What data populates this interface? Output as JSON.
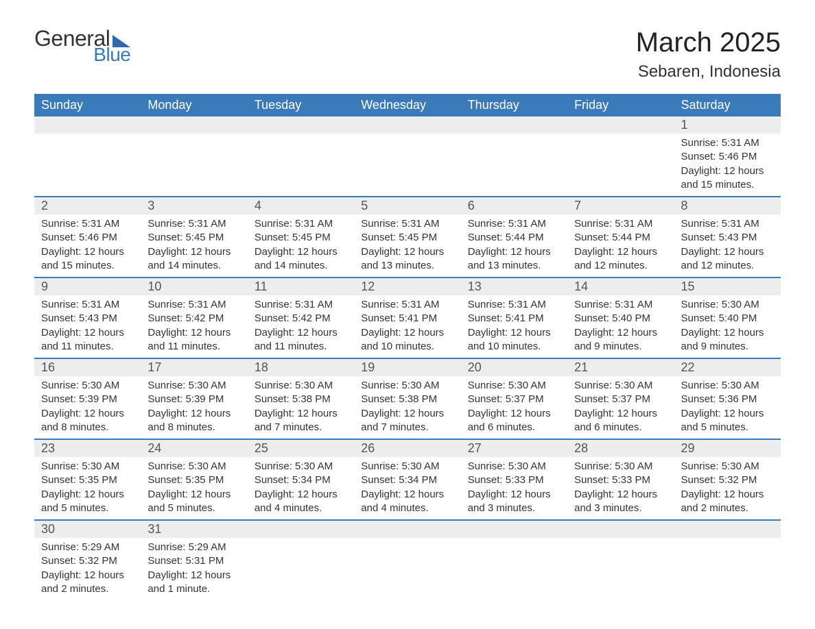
{
  "logo": {
    "text_general": "General",
    "text_blue": "Blue",
    "brand_color": "#3a7ab8"
  },
  "header": {
    "month_title": "March 2025",
    "location": "Sebaren, Indonesia"
  },
  "styling": {
    "header_bg": "#3a7ab8",
    "header_text": "#ffffff",
    "daynum_bg": "#ededed",
    "row_divider": "#3a7ab8",
    "body_bg": "#ffffff",
    "text_color": "#333333",
    "title_fontsize": 40,
    "location_fontsize": 24,
    "weekday_fontsize": 18,
    "daynum_fontsize": 18,
    "detail_fontsize": 15
  },
  "calendar": {
    "weekdays": [
      "Sunday",
      "Monday",
      "Tuesday",
      "Wednesday",
      "Thursday",
      "Friday",
      "Saturday"
    ],
    "weeks": [
      [
        null,
        null,
        null,
        null,
        null,
        null,
        {
          "n": "1",
          "sr": "Sunrise: 5:31 AM",
          "ss": "Sunset: 5:46 PM",
          "dl1": "Daylight: 12 hours",
          "dl2": "and 15 minutes."
        }
      ],
      [
        {
          "n": "2",
          "sr": "Sunrise: 5:31 AM",
          "ss": "Sunset: 5:46 PM",
          "dl1": "Daylight: 12 hours",
          "dl2": "and 15 minutes."
        },
        {
          "n": "3",
          "sr": "Sunrise: 5:31 AM",
          "ss": "Sunset: 5:45 PM",
          "dl1": "Daylight: 12 hours",
          "dl2": "and 14 minutes."
        },
        {
          "n": "4",
          "sr": "Sunrise: 5:31 AM",
          "ss": "Sunset: 5:45 PM",
          "dl1": "Daylight: 12 hours",
          "dl2": "and 14 minutes."
        },
        {
          "n": "5",
          "sr": "Sunrise: 5:31 AM",
          "ss": "Sunset: 5:45 PM",
          "dl1": "Daylight: 12 hours",
          "dl2": "and 13 minutes."
        },
        {
          "n": "6",
          "sr": "Sunrise: 5:31 AM",
          "ss": "Sunset: 5:44 PM",
          "dl1": "Daylight: 12 hours",
          "dl2": "and 13 minutes."
        },
        {
          "n": "7",
          "sr": "Sunrise: 5:31 AM",
          "ss": "Sunset: 5:44 PM",
          "dl1": "Daylight: 12 hours",
          "dl2": "and 12 minutes."
        },
        {
          "n": "8",
          "sr": "Sunrise: 5:31 AM",
          "ss": "Sunset: 5:43 PM",
          "dl1": "Daylight: 12 hours",
          "dl2": "and 12 minutes."
        }
      ],
      [
        {
          "n": "9",
          "sr": "Sunrise: 5:31 AM",
          "ss": "Sunset: 5:43 PM",
          "dl1": "Daylight: 12 hours",
          "dl2": "and 11 minutes."
        },
        {
          "n": "10",
          "sr": "Sunrise: 5:31 AM",
          "ss": "Sunset: 5:42 PM",
          "dl1": "Daylight: 12 hours",
          "dl2": "and 11 minutes."
        },
        {
          "n": "11",
          "sr": "Sunrise: 5:31 AM",
          "ss": "Sunset: 5:42 PM",
          "dl1": "Daylight: 12 hours",
          "dl2": "and 11 minutes."
        },
        {
          "n": "12",
          "sr": "Sunrise: 5:31 AM",
          "ss": "Sunset: 5:41 PM",
          "dl1": "Daylight: 12 hours",
          "dl2": "and 10 minutes."
        },
        {
          "n": "13",
          "sr": "Sunrise: 5:31 AM",
          "ss": "Sunset: 5:41 PM",
          "dl1": "Daylight: 12 hours",
          "dl2": "and 10 minutes."
        },
        {
          "n": "14",
          "sr": "Sunrise: 5:31 AM",
          "ss": "Sunset: 5:40 PM",
          "dl1": "Daylight: 12 hours",
          "dl2": "and 9 minutes."
        },
        {
          "n": "15",
          "sr": "Sunrise: 5:30 AM",
          "ss": "Sunset: 5:40 PM",
          "dl1": "Daylight: 12 hours",
          "dl2": "and 9 minutes."
        }
      ],
      [
        {
          "n": "16",
          "sr": "Sunrise: 5:30 AM",
          "ss": "Sunset: 5:39 PM",
          "dl1": "Daylight: 12 hours",
          "dl2": "and 8 minutes."
        },
        {
          "n": "17",
          "sr": "Sunrise: 5:30 AM",
          "ss": "Sunset: 5:39 PM",
          "dl1": "Daylight: 12 hours",
          "dl2": "and 8 minutes."
        },
        {
          "n": "18",
          "sr": "Sunrise: 5:30 AM",
          "ss": "Sunset: 5:38 PM",
          "dl1": "Daylight: 12 hours",
          "dl2": "and 7 minutes."
        },
        {
          "n": "19",
          "sr": "Sunrise: 5:30 AM",
          "ss": "Sunset: 5:38 PM",
          "dl1": "Daylight: 12 hours",
          "dl2": "and 7 minutes."
        },
        {
          "n": "20",
          "sr": "Sunrise: 5:30 AM",
          "ss": "Sunset: 5:37 PM",
          "dl1": "Daylight: 12 hours",
          "dl2": "and 6 minutes."
        },
        {
          "n": "21",
          "sr": "Sunrise: 5:30 AM",
          "ss": "Sunset: 5:37 PM",
          "dl1": "Daylight: 12 hours",
          "dl2": "and 6 minutes."
        },
        {
          "n": "22",
          "sr": "Sunrise: 5:30 AM",
          "ss": "Sunset: 5:36 PM",
          "dl1": "Daylight: 12 hours",
          "dl2": "and 5 minutes."
        }
      ],
      [
        {
          "n": "23",
          "sr": "Sunrise: 5:30 AM",
          "ss": "Sunset: 5:35 PM",
          "dl1": "Daylight: 12 hours",
          "dl2": "and 5 minutes."
        },
        {
          "n": "24",
          "sr": "Sunrise: 5:30 AM",
          "ss": "Sunset: 5:35 PM",
          "dl1": "Daylight: 12 hours",
          "dl2": "and 5 minutes."
        },
        {
          "n": "25",
          "sr": "Sunrise: 5:30 AM",
          "ss": "Sunset: 5:34 PM",
          "dl1": "Daylight: 12 hours",
          "dl2": "and 4 minutes."
        },
        {
          "n": "26",
          "sr": "Sunrise: 5:30 AM",
          "ss": "Sunset: 5:34 PM",
          "dl1": "Daylight: 12 hours",
          "dl2": "and 4 minutes."
        },
        {
          "n": "27",
          "sr": "Sunrise: 5:30 AM",
          "ss": "Sunset: 5:33 PM",
          "dl1": "Daylight: 12 hours",
          "dl2": "and 3 minutes."
        },
        {
          "n": "28",
          "sr": "Sunrise: 5:30 AM",
          "ss": "Sunset: 5:33 PM",
          "dl1": "Daylight: 12 hours",
          "dl2": "and 3 minutes."
        },
        {
          "n": "29",
          "sr": "Sunrise: 5:30 AM",
          "ss": "Sunset: 5:32 PM",
          "dl1": "Daylight: 12 hours",
          "dl2": "and 2 minutes."
        }
      ],
      [
        {
          "n": "30",
          "sr": "Sunrise: 5:29 AM",
          "ss": "Sunset: 5:32 PM",
          "dl1": "Daylight: 12 hours",
          "dl2": "and 2 minutes."
        },
        {
          "n": "31",
          "sr": "Sunrise: 5:29 AM",
          "ss": "Sunset: 5:31 PM",
          "dl1": "Daylight: 12 hours",
          "dl2": "and 1 minute."
        },
        null,
        null,
        null,
        null,
        null
      ]
    ]
  }
}
